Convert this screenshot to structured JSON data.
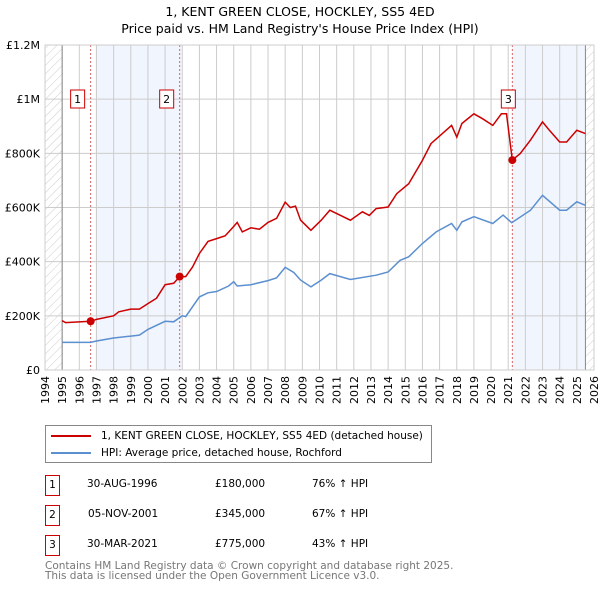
{
  "title_line1": "1, KENT GREEN CLOSE, HOCKLEY, SS5 4ED",
  "title_line2": "Price paid vs. HM Land Registry's House Price Index (HPI)",
  "legend": [
    {
      "label": "1, KENT GREEN CLOSE, HOCKLEY, SS5 4ED (detached house)",
      "color": "#cc0000"
    },
    {
      "label": "HPI: Average price, detached house, Rochford",
      "color": "#5b8fd0"
    }
  ],
  "sales": [
    {
      "num": "1",
      "date": "30-AUG-1996",
      "price": "£180,000",
      "hpi": "76% ↑ HPI"
    },
    {
      "num": "2",
      "date": "05-NOV-2001",
      "price": "£345,000",
      "hpi": "67% ↑ HPI"
    },
    {
      "num": "3",
      "date": "30-MAR-2021",
      "price": "£775,000",
      "hpi": "43% ↑ HPI"
    }
  ],
  "footer_line1": "Contains HM Land Registry data © Crown copyright and database right 2025.",
  "footer_line2": "This data is licensed under the Open Government Licence v3.0.",
  "chart_data": {
    "type": "line",
    "title": "1, KENT GREEN CLOSE, HOCKLEY, SS5 4ED — Price paid vs. HM Land Registry's House Price Index (HPI)",
    "xlim": [
      1994,
      2026
    ],
    "ylim": [
      0,
      1200000
    ],
    "x_ticks": [
      "1994",
      "1995",
      "1996",
      "1997",
      "1998",
      "1999",
      "2000",
      "2001",
      "2002",
      "2003",
      "2004",
      "2005",
      "2006",
      "2007",
      "2008",
      "2009",
      "2010",
      "2011",
      "2012",
      "2013",
      "2014",
      "2015",
      "2016",
      "2017",
      "2018",
      "2019",
      "2020",
      "2021",
      "2022",
      "2023",
      "2024",
      "2025",
      "2026"
    ],
    "y_ticks": [
      {
        "v": 0,
        "label": "£0"
      },
      {
        "v": 200000,
        "label": "£200K"
      },
      {
        "v": 400000,
        "label": "£400K"
      },
      {
        "v": 600000,
        "label": "£600K"
      },
      {
        "v": 800000,
        "label": "£800K"
      },
      {
        "v": 1000000,
        "label": "£1M"
      },
      {
        "v": 1200000,
        "label": "£1.2M"
      }
    ],
    "grid": true,
    "shaded_periods": [
      [
        1996.95,
        2001.95
      ],
      [
        2021.24,
        2025.5
      ]
    ],
    "hatched_periods": [
      [
        1994,
        1995
      ],
      [
        2025.5,
        2026
      ]
    ],
    "sale_points": [
      {
        "label": "1",
        "x": 1996.66,
        "y": 180000
      },
      {
        "label": "2",
        "x": 2001.85,
        "y": 345000
      },
      {
        "label": "3",
        "x": 2021.24,
        "y": 775000
      }
    ],
    "series": [
      {
        "name": "1, KENT GREEN CLOSE, HOCKLEY, SS5 4ED (detached house)",
        "color": "#cc0000",
        "x": [
          1995,
          1995.2,
          1996.66,
          1997,
          1998,
          1998.3,
          1999,
          1999.5,
          2000,
          2000.5,
          2001,
          2001.5,
          2001.85,
          2002.2,
          2002.6,
          2003,
          2003.5,
          2004,
          2004.5,
          2005,
          2005.2,
          2005.5,
          2006,
          2006.5,
          2007,
          2007.5,
          2008,
          2008.3,
          2008.6,
          2008.9,
          2009.5,
          2010.1,
          2010.6,
          2011.8,
          2012.5,
          2012.9,
          2013.3,
          2014,
          2014.5,
          2015.2,
          2016,
          2016.5,
          2017.7,
          2018,
          2018.3,
          2019,
          2019.5,
          2020.1,
          2020.6,
          2020.9,
          2021.24,
          2021.7,
          2022.3,
          2023,
          2023.4,
          2024,
          2024.4,
          2025,
          2025.5
        ],
        "y": [
          182000,
          175000,
          180000,
          187000,
          200000,
          215000,
          225000,
          225000,
          245000,
          265000,
          315000,
          320000,
          345000,
          345000,
          380000,
          430000,
          475000,
          485000,
          495000,
          530000,
          545000,
          510000,
          525000,
          520000,
          545000,
          560000,
          620000,
          600000,
          605000,
          553000,
          516000,
          553000,
          590000,
          553000,
          584000,
          571000,
          596000,
          602000,
          651000,
          688000,
          774000,
          836000,
          903000,
          860000,
          910000,
          946000,
          928000,
          903000,
          946000,
          946000,
          775000,
          799000,
          849000,
          916000,
          885000,
          842000,
          842000,
          885000,
          873000
        ]
      },
      {
        "name": "HPI: Average price, detached house, Rochford",
        "color": "#5b8fd0",
        "x": [
          1995,
          1996.66,
          1997,
          1998,
          1999,
          1999.5,
          2000,
          2001,
          2001.5,
          2002,
          2002.2,
          2003,
          2003.5,
          2004,
          2004.7,
          2005,
          2005.2,
          2006,
          2007,
          2007.5,
          2008,
          2008.5,
          2008.9,
          2009.5,
          2010.1,
          2010.6,
          2011.8,
          2013.3,
          2014,
          2014.7,
          2015.2,
          2016,
          2016.8,
          2017.7,
          2018,
          2018.3,
          2019,
          2020.1,
          2020.7,
          2021.2,
          2022.3,
          2023,
          2024,
          2024.4,
          2025,
          2025.5
        ],
        "y": [
          102000,
          102000,
          107000,
          118000,
          125000,
          129000,
          150000,
          180000,
          178000,
          200000,
          197000,
          270000,
          285000,
          290000,
          310000,
          326000,
          310000,
          315000,
          330000,
          340000,
          379000,
          360000,
          332000,
          307000,
          332000,
          356000,
          334000,
          350000,
          362000,
          405000,
          418000,
          467000,
          510000,
          541000,
          516000,
          547000,
          566000,
          541000,
          572000,
          544000,
          590000,
          645000,
          590000,
          590000,
          621000,
          608000
        ]
      }
    ]
  }
}
